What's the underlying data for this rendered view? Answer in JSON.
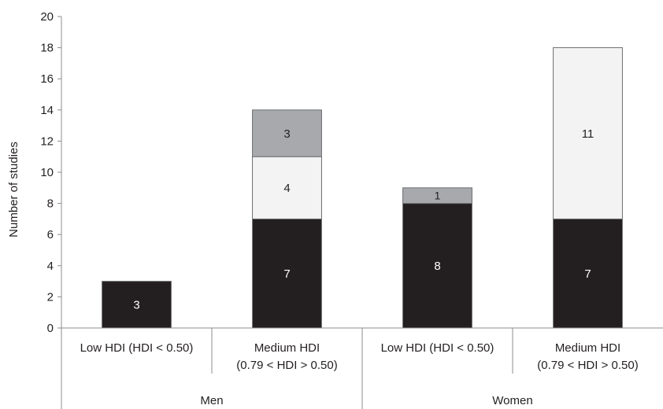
{
  "chart_data": {
    "type": "bar",
    "stacked": true,
    "ylabel": "Number of studies",
    "ylim": [
      0,
      20
    ],
    "yticks": [
      0,
      2,
      4,
      6,
      8,
      10,
      12,
      14,
      16,
      18,
      20
    ],
    "groups": [
      {
        "label": "Men",
        "categories": [
          {
            "lines": [
              "Low HDI (HDI < 0.50)"
            ]
          },
          {
            "lines": [
              "Medium HDI",
              "(0.79 < HDI > 0.50)"
            ]
          }
        ]
      },
      {
        "label": "Women",
        "categories": [
          {
            "lines": [
              "Low HDI (HDI < 0.50)"
            ]
          },
          {
            "lines": [
              "Medium HDI",
              "(0.79 < HDI > 0.50)"
            ]
          }
        ]
      }
    ],
    "series": [
      {
        "color": "#231f20",
        "label_color": "#ffffff",
        "values": [
          3,
          7,
          8,
          7
        ]
      },
      {
        "color": "#f2f3f2",
        "label_color": "#231f20",
        "values": [
          0,
          4,
          0,
          11
        ]
      },
      {
        "color": "#a7a9ac",
        "label_color": "#231f20",
        "values": [
          0,
          3,
          1,
          0
        ]
      }
    ],
    "grid": false,
    "legend": "none"
  }
}
